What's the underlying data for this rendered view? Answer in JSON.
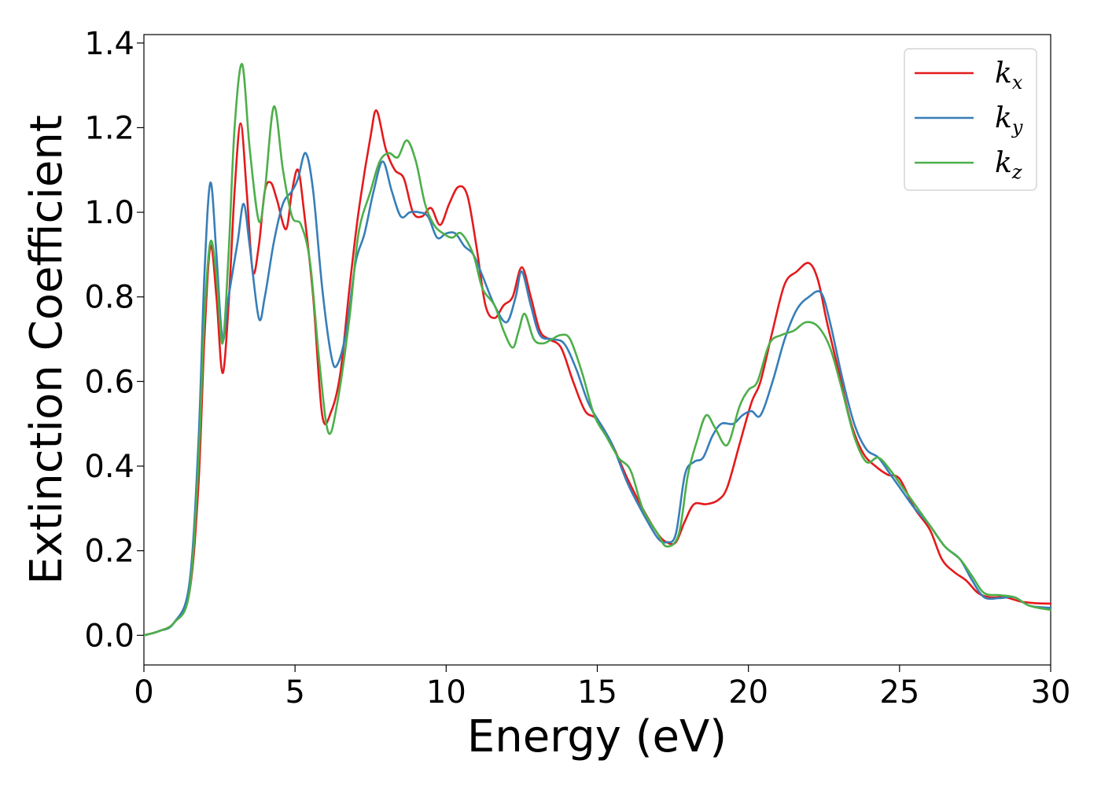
{
  "chart_data": {
    "type": "line",
    "xlabel": "Energy (eV)",
    "ylabel": "Extinction Coefficient",
    "xlim": [
      0,
      30
    ],
    "ylim": [
      -0.07,
      1.42
    ],
    "xticks": [
      0,
      5,
      10,
      15,
      20,
      25,
      30
    ],
    "xtick_labels": [
      "0",
      "5",
      "10",
      "15",
      "20",
      "25",
      "30"
    ],
    "yticks": [
      0.0,
      0.2,
      0.4,
      0.6,
      0.8,
      1.0,
      1.2,
      1.4
    ],
    "ytick_labels": [
      "0.0",
      "0.2",
      "0.4",
      "0.6",
      "0.8",
      "1.0",
      "1.2",
      "1.4"
    ],
    "grid": false,
    "legend_position": "top-right",
    "series": [
      {
        "name": "k",
        "subscript": "x",
        "color": "#e41a1c",
        "points": [
          [
            0,
            0
          ],
          [
            0.5,
            0.01
          ],
          [
            1.0,
            0.03
          ],
          [
            1.5,
            0.1
          ],
          [
            1.8,
            0.35
          ],
          [
            2.0,
            0.7
          ],
          [
            2.2,
            0.92
          ],
          [
            2.4,
            0.8
          ],
          [
            2.6,
            0.62
          ],
          [
            2.8,
            0.78
          ],
          [
            3.0,
            1.05
          ],
          [
            3.2,
            1.21
          ],
          [
            3.4,
            1.05
          ],
          [
            3.6,
            0.86
          ],
          [
            3.8,
            0.92
          ],
          [
            4.0,
            1.05
          ],
          [
            4.2,
            1.07
          ],
          [
            4.4,
            1.03
          ],
          [
            4.7,
            0.96
          ],
          [
            4.9,
            1.05
          ],
          [
            5.1,
            1.1
          ],
          [
            5.3,
            1.0
          ],
          [
            5.6,
            0.8
          ],
          [
            5.9,
            0.52
          ],
          [
            6.2,
            0.53
          ],
          [
            6.5,
            0.62
          ],
          [
            6.8,
            0.82
          ],
          [
            7.1,
            1.0
          ],
          [
            7.5,
            1.18
          ],
          [
            7.7,
            1.24
          ],
          [
            8.0,
            1.15
          ],
          [
            8.3,
            1.1
          ],
          [
            8.6,
            1.08
          ],
          [
            8.9,
            1.0
          ],
          [
            9.2,
            0.99
          ],
          [
            9.5,
            1.01
          ],
          [
            9.8,
            0.97
          ],
          [
            10.1,
            1.02
          ],
          [
            10.4,
            1.06
          ],
          [
            10.7,
            1.04
          ],
          [
            11.0,
            0.92
          ],
          [
            11.3,
            0.78
          ],
          [
            11.6,
            0.75
          ],
          [
            11.9,
            0.78
          ],
          [
            12.2,
            0.8
          ],
          [
            12.5,
            0.87
          ],
          [
            12.8,
            0.8
          ],
          [
            13.1,
            0.72
          ],
          [
            13.4,
            0.7
          ],
          [
            13.8,
            0.68
          ],
          [
            14.2,
            0.6
          ],
          [
            14.6,
            0.53
          ],
          [
            15.0,
            0.51
          ],
          [
            15.5,
            0.45
          ],
          [
            16.0,
            0.37
          ],
          [
            16.5,
            0.3
          ],
          [
            17.0,
            0.24
          ],
          [
            17.3,
            0.22
          ],
          [
            17.6,
            0.22
          ],
          [
            17.9,
            0.27
          ],
          [
            18.2,
            0.31
          ],
          [
            18.6,
            0.31
          ],
          [
            19.0,
            0.32
          ],
          [
            19.3,
            0.35
          ],
          [
            19.7,
            0.45
          ],
          [
            20.1,
            0.55
          ],
          [
            20.4,
            0.6
          ],
          [
            20.8,
            0.72
          ],
          [
            21.2,
            0.83
          ],
          [
            21.6,
            0.86
          ],
          [
            22.0,
            0.88
          ],
          [
            22.3,
            0.84
          ],
          [
            22.6,
            0.74
          ],
          [
            23.0,
            0.62
          ],
          [
            23.4,
            0.5
          ],
          [
            23.8,
            0.43
          ],
          [
            24.2,
            0.4
          ],
          [
            24.6,
            0.38
          ],
          [
            25.0,
            0.37
          ],
          [
            25.5,
            0.3
          ],
          [
            26.0,
            0.25
          ],
          [
            26.4,
            0.18
          ],
          [
            26.8,
            0.15
          ],
          [
            27.2,
            0.13
          ],
          [
            27.6,
            0.1
          ],
          [
            28.0,
            0.09
          ],
          [
            28.5,
            0.09
          ],
          [
            29.0,
            0.08
          ],
          [
            29.5,
            0.076
          ],
          [
            30,
            0.075
          ]
        ]
      },
      {
        "name": "k",
        "subscript": "y",
        "color": "#377eb8",
        "points": [
          [
            0,
            0
          ],
          [
            0.5,
            0.01
          ],
          [
            1.0,
            0.03
          ],
          [
            1.5,
            0.12
          ],
          [
            1.8,
            0.45
          ],
          [
            2.0,
            0.85
          ],
          [
            2.2,
            1.07
          ],
          [
            2.4,
            0.9
          ],
          [
            2.6,
            0.7
          ],
          [
            2.8,
            0.8
          ],
          [
            3.1,
            0.93
          ],
          [
            3.3,
            1.02
          ],
          [
            3.5,
            0.92
          ],
          [
            3.8,
            0.75
          ],
          [
            4.0,
            0.8
          ],
          [
            4.3,
            0.93
          ],
          [
            4.6,
            1.02
          ],
          [
            4.9,
            1.05
          ],
          [
            5.1,
            1.08
          ],
          [
            5.35,
            1.14
          ],
          [
            5.6,
            1.05
          ],
          [
            5.9,
            0.82
          ],
          [
            6.2,
            0.66
          ],
          [
            6.4,
            0.64
          ],
          [
            6.7,
            0.72
          ],
          [
            7.0,
            0.88
          ],
          [
            7.3,
            0.95
          ],
          [
            7.6,
            1.05
          ],
          [
            7.9,
            1.12
          ],
          [
            8.2,
            1.05
          ],
          [
            8.5,
            0.99
          ],
          [
            8.8,
            1.0
          ],
          [
            9.1,
            1.0
          ],
          [
            9.4,
            0.99
          ],
          [
            9.7,
            0.94
          ],
          [
            10.0,
            0.95
          ],
          [
            10.3,
            0.95
          ],
          [
            10.6,
            0.92
          ],
          [
            10.9,
            0.9
          ],
          [
            11.2,
            0.85
          ],
          [
            11.6,
            0.78
          ],
          [
            12.0,
            0.74
          ],
          [
            12.3,
            0.8
          ],
          [
            12.5,
            0.86
          ],
          [
            12.8,
            0.78
          ],
          [
            13.1,
            0.71
          ],
          [
            13.5,
            0.7
          ],
          [
            13.9,
            0.69
          ],
          [
            14.3,
            0.63
          ],
          [
            14.7,
            0.55
          ],
          [
            15.1,
            0.5
          ],
          [
            15.5,
            0.45
          ],
          [
            16.0,
            0.36
          ],
          [
            16.5,
            0.29
          ],
          [
            17.0,
            0.23
          ],
          [
            17.3,
            0.22
          ],
          [
            17.6,
            0.24
          ],
          [
            17.9,
            0.38
          ],
          [
            18.2,
            0.41
          ],
          [
            18.5,
            0.42
          ],
          [
            18.8,
            0.47
          ],
          [
            19.1,
            0.5
          ],
          [
            19.5,
            0.5
          ],
          [
            19.8,
            0.52
          ],
          [
            20.1,
            0.53
          ],
          [
            20.4,
            0.52
          ],
          [
            20.8,
            0.6
          ],
          [
            21.2,
            0.7
          ],
          [
            21.6,
            0.77
          ],
          [
            22.0,
            0.8
          ],
          [
            22.4,
            0.81
          ],
          [
            22.7,
            0.74
          ],
          [
            23.1,
            0.61
          ],
          [
            23.5,
            0.5
          ],
          [
            23.9,
            0.44
          ],
          [
            24.3,
            0.42
          ],
          [
            24.7,
            0.38
          ],
          [
            25.1,
            0.34
          ],
          [
            25.5,
            0.3
          ],
          [
            26.0,
            0.26
          ],
          [
            26.5,
            0.21
          ],
          [
            27.0,
            0.18
          ],
          [
            27.4,
            0.13
          ],
          [
            27.8,
            0.09
          ],
          [
            28.3,
            0.088
          ],
          [
            28.8,
            0.09
          ],
          [
            29.3,
            0.07
          ],
          [
            30,
            0.065
          ]
        ]
      },
      {
        "name": "k",
        "subscript": "z",
        "color": "#4daf4a",
        "points": [
          [
            0,
            0
          ],
          [
            0.5,
            0.01
          ],
          [
            1.0,
            0.03
          ],
          [
            1.5,
            0.1
          ],
          [
            1.8,
            0.4
          ],
          [
            2.0,
            0.75
          ],
          [
            2.2,
            0.93
          ],
          [
            2.4,
            0.85
          ],
          [
            2.6,
            0.69
          ],
          [
            2.8,
            0.9
          ],
          [
            3.0,
            1.2
          ],
          [
            3.25,
            1.35
          ],
          [
            3.5,
            1.15
          ],
          [
            3.8,
            0.98
          ],
          [
            4.0,
            1.05
          ],
          [
            4.3,
            1.25
          ],
          [
            4.6,
            1.1
          ],
          [
            4.9,
            0.99
          ],
          [
            5.2,
            0.97
          ],
          [
            5.5,
            0.88
          ],
          [
            5.8,
            0.65
          ],
          [
            6.1,
            0.48
          ],
          [
            6.4,
            0.55
          ],
          [
            6.8,
            0.75
          ],
          [
            7.1,
            0.95
          ],
          [
            7.5,
            1.05
          ],
          [
            7.8,
            1.12
          ],
          [
            8.1,
            1.14
          ],
          [
            8.4,
            1.13
          ],
          [
            8.7,
            1.17
          ],
          [
            9.0,
            1.12
          ],
          [
            9.3,
            1.02
          ],
          [
            9.6,
            0.97
          ],
          [
            9.9,
            0.95
          ],
          [
            10.2,
            0.94
          ],
          [
            10.5,
            0.95
          ],
          [
            10.9,
            0.9
          ],
          [
            11.2,
            0.82
          ],
          [
            11.6,
            0.78
          ],
          [
            11.9,
            0.72
          ],
          [
            12.2,
            0.68
          ],
          [
            12.4,
            0.72
          ],
          [
            12.6,
            0.76
          ],
          [
            12.9,
            0.7
          ],
          [
            13.2,
            0.69
          ],
          [
            13.5,
            0.7
          ],
          [
            13.8,
            0.71
          ],
          [
            14.1,
            0.7
          ],
          [
            14.5,
            0.62
          ],
          [
            14.9,
            0.52
          ],
          [
            15.3,
            0.47
          ],
          [
            15.7,
            0.42
          ],
          [
            16.1,
            0.39
          ],
          [
            16.5,
            0.3
          ],
          [
            17.0,
            0.24
          ],
          [
            17.3,
            0.21
          ],
          [
            17.7,
            0.24
          ],
          [
            18.0,
            0.38
          ],
          [
            18.3,
            0.46
          ],
          [
            18.6,
            0.52
          ],
          [
            18.9,
            0.49
          ],
          [
            19.3,
            0.45
          ],
          [
            19.7,
            0.54
          ],
          [
            20.0,
            0.58
          ],
          [
            20.3,
            0.6
          ],
          [
            20.7,
            0.69
          ],
          [
            21.1,
            0.71
          ],
          [
            21.5,
            0.72
          ],
          [
            21.9,
            0.74
          ],
          [
            22.3,
            0.73
          ],
          [
            22.7,
            0.68
          ],
          [
            23.1,
            0.58
          ],
          [
            23.5,
            0.47
          ],
          [
            23.9,
            0.41
          ],
          [
            24.3,
            0.42
          ],
          [
            24.7,
            0.39
          ],
          [
            25.1,
            0.35
          ],
          [
            25.5,
            0.31
          ],
          [
            26.0,
            0.26
          ],
          [
            26.5,
            0.21
          ],
          [
            27.0,
            0.18
          ],
          [
            27.4,
            0.14
          ],
          [
            27.8,
            0.1
          ],
          [
            28.3,
            0.095
          ],
          [
            28.8,
            0.09
          ],
          [
            29.3,
            0.07
          ],
          [
            30,
            0.06
          ]
        ]
      }
    ]
  }
}
